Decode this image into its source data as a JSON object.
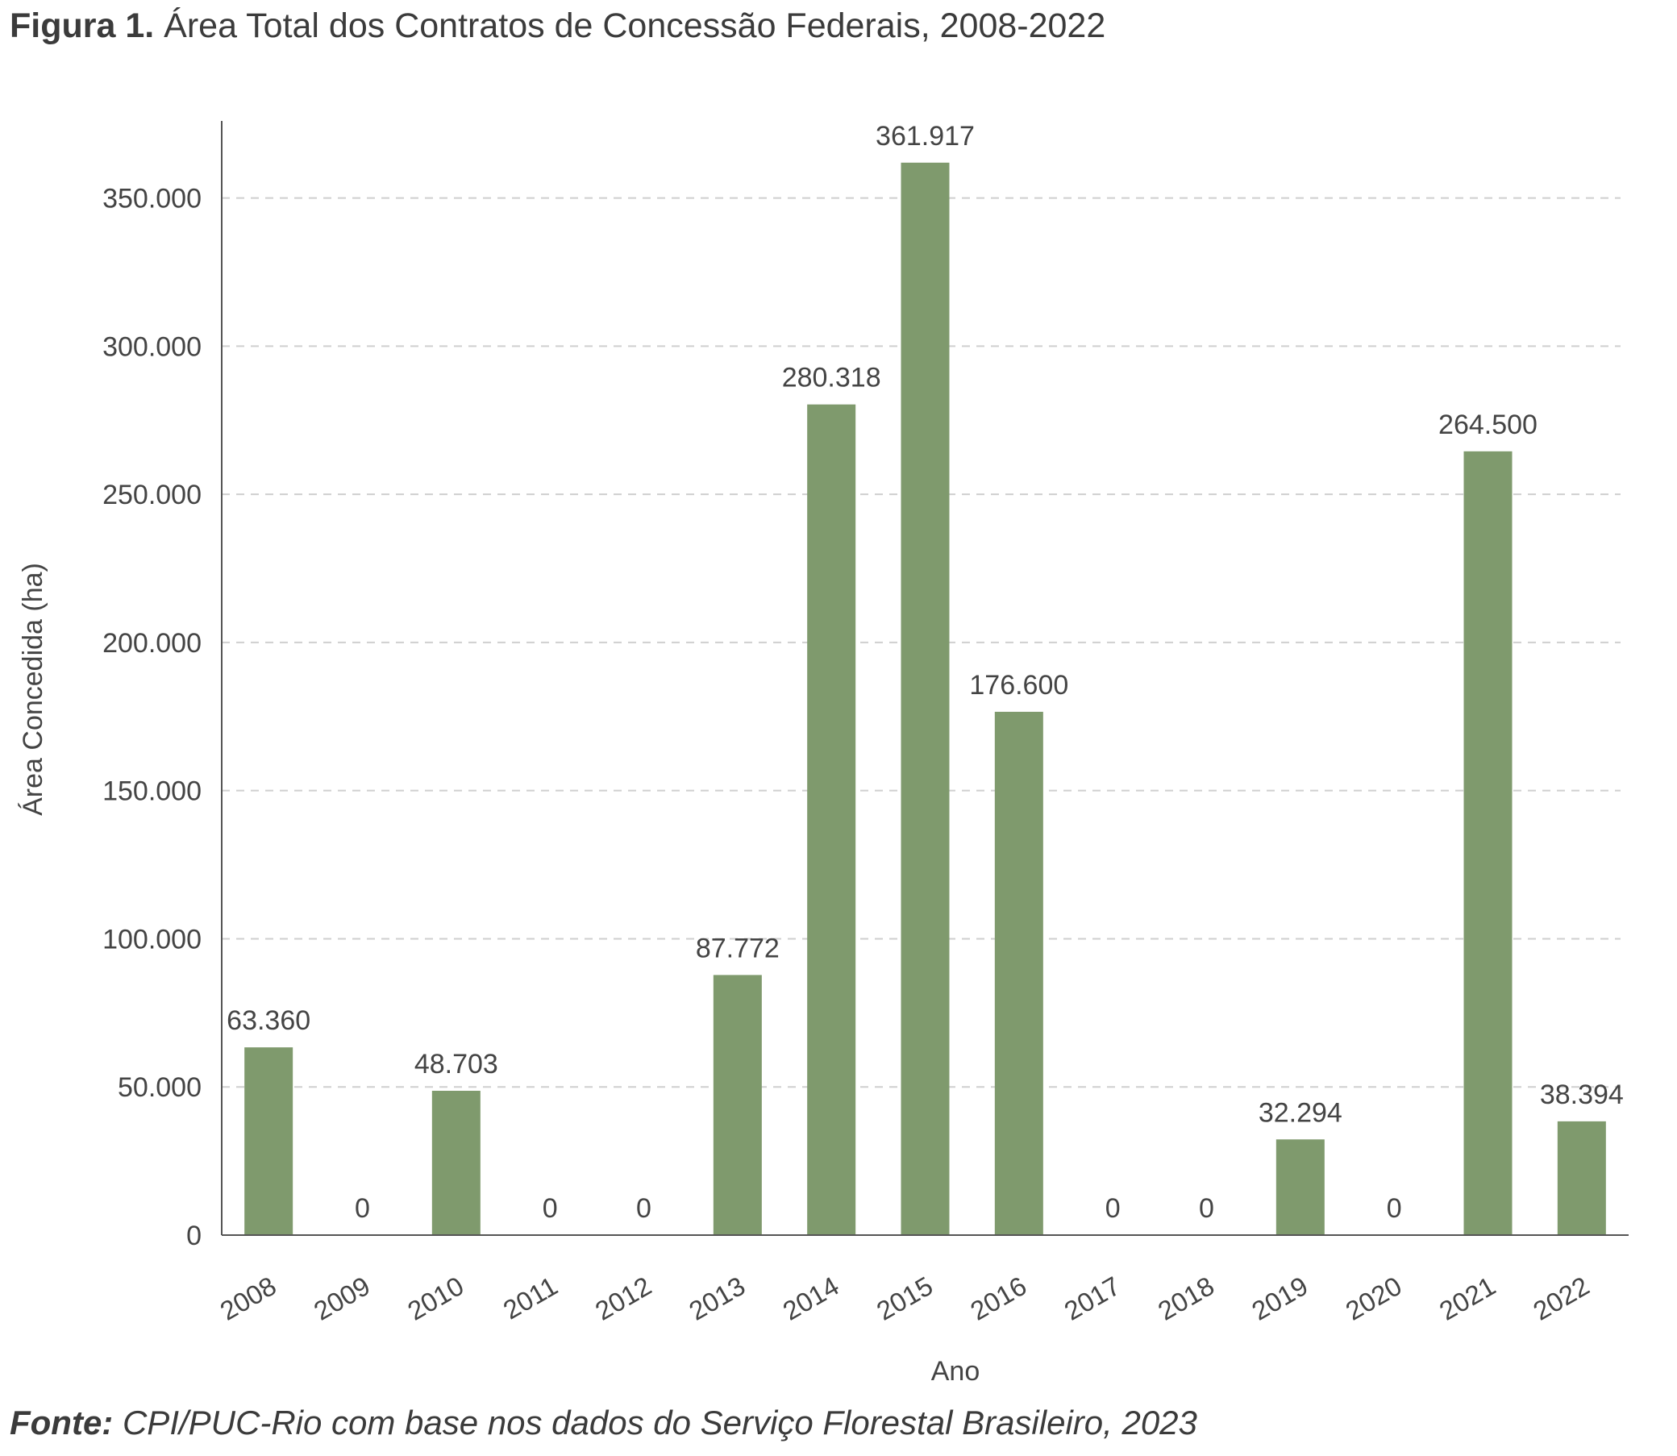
{
  "figure": {
    "label": "Figura 1.",
    "title": "Área Total dos Contratos de Concessão Federais, 2008-2022"
  },
  "source": {
    "label": "Fonte:",
    "text": "CPI/PUC-Rio com base nos dados do Serviço Florestal Brasileiro, 2023"
  },
  "chart_data": {
    "type": "bar",
    "title": "",
    "xlabel": "Ano",
    "ylabel": "Área Concedida (ha)",
    "categories": [
      "2008",
      "2009",
      "2010",
      "2011",
      "2012",
      "2013",
      "2014",
      "2015",
      "2016",
      "2017",
      "2018",
      "2019",
      "2020",
      "2021",
      "2022"
    ],
    "values": [
      63360,
      0,
      48703,
      0,
      0,
      87772,
      280318,
      361917,
      176600,
      0,
      0,
      32294,
      0,
      264500,
      38394
    ],
    "value_labels": [
      "63.360",
      "0",
      "48.703",
      "0",
      "0",
      "87.772",
      "280.318",
      "361.917",
      "176.600",
      "0",
      "0",
      "32.294",
      "0",
      "264.500",
      "38.394"
    ],
    "yticks": [
      0,
      50000,
      100000,
      150000,
      200000,
      250000,
      300000,
      350000
    ],
    "ytick_labels": [
      "0",
      "50.000",
      "100.000",
      "150.000",
      "200.000",
      "250.000",
      "300.000",
      "350.000"
    ],
    "ylim": [
      0,
      376000
    ],
    "grid": true,
    "grid_style": "dashed",
    "bar_color": "#7f9a6d",
    "grid_color": "#cfcfcf",
    "axis_color": "#555555",
    "text_color": "#444444"
  }
}
